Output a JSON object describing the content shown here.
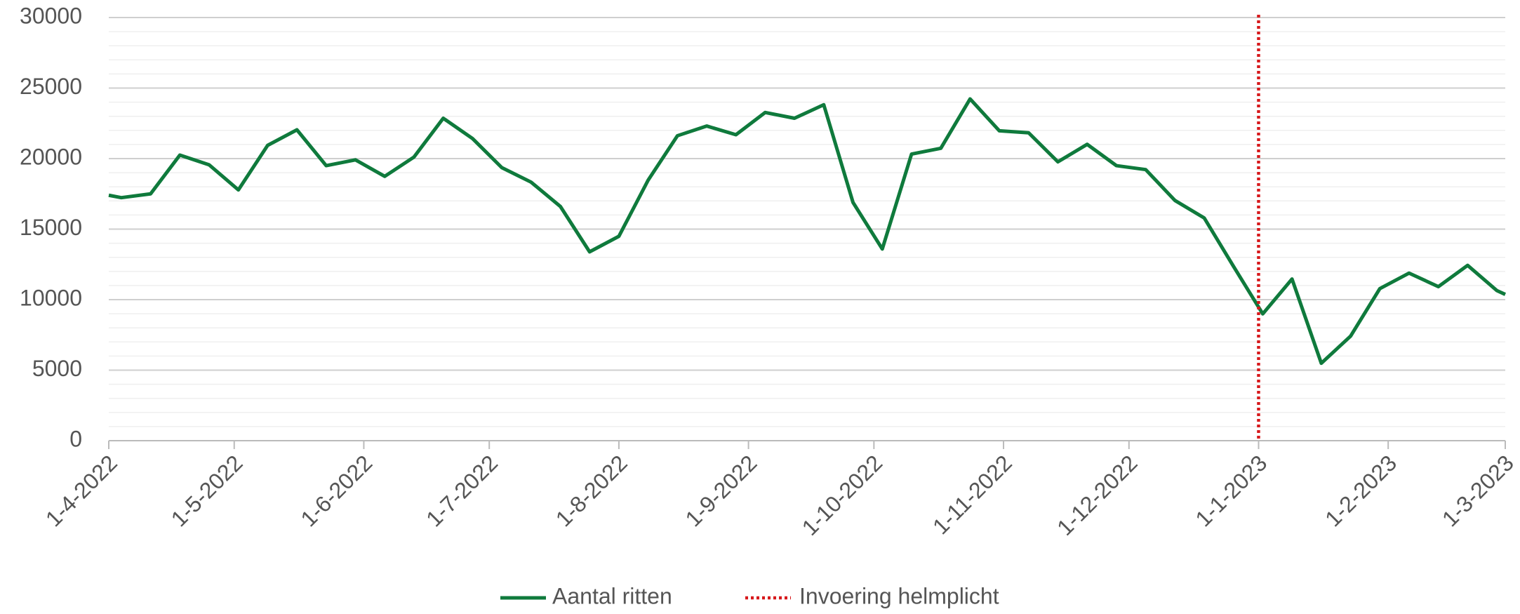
{
  "chart_data": {
    "type": "line",
    "x": [
      "2022-04-01",
      "2022-04-04",
      "2022-04-11",
      "2022-04-18",
      "2022-04-25",
      "2022-05-02",
      "2022-05-09",
      "2022-05-16",
      "2022-05-23",
      "2022-05-30",
      "2022-06-06",
      "2022-06-13",
      "2022-06-20",
      "2022-06-27",
      "2022-07-04",
      "2022-07-11",
      "2022-07-18",
      "2022-07-25",
      "2022-08-01",
      "2022-08-08",
      "2022-08-15",
      "2022-08-22",
      "2022-08-29",
      "2022-09-05",
      "2022-09-12",
      "2022-09-19",
      "2022-09-26",
      "2022-10-03",
      "2022-10-10",
      "2022-10-17",
      "2022-10-24",
      "2022-10-31",
      "2022-11-07",
      "2022-11-14",
      "2022-11-21",
      "2022-11-28",
      "2022-12-05",
      "2022-12-12",
      "2022-12-19",
      "2022-12-26",
      "2023-01-02",
      "2023-01-09",
      "2023-01-16",
      "2023-01-23",
      "2023-01-30",
      "2023-02-06",
      "2023-02-13",
      "2023-02-20",
      "2023-02-27",
      "2023-03-01"
    ],
    "series": [
      {
        "name": "Aantal ritten",
        "color": "#0f7a3c",
        "values": [
          17400,
          17230,
          17500,
          20250,
          19560,
          17780,
          20940,
          22040,
          19500,
          19910,
          18740,
          20110,
          22860,
          21420,
          19360,
          18330,
          16610,
          13390,
          14490,
          18470,
          21620,
          22310,
          21690,
          23270,
          22860,
          23820,
          16890,
          13590,
          20320,
          20730,
          24230,
          21970,
          21830,
          19770,
          21010,
          19500,
          19220,
          17030,
          15790,
          12360,
          8990,
          11460,
          5490,
          7410,
          10780,
          11880,
          10920,
          12430,
          10640,
          10370
        ]
      }
    ],
    "vline": {
      "name": "Invoering helmplicht",
      "color": "#d7191c",
      "x": "2023-01-01"
    },
    "xlim": [
      "2022-04-01",
      "2023-03-01"
    ],
    "xticks": [
      {
        "value": "2022-04-01",
        "label": "1-4-2022"
      },
      {
        "value": "2022-05-01",
        "label": "1-5-2022"
      },
      {
        "value": "2022-06-01",
        "label": "1-6-2022"
      },
      {
        "value": "2022-07-01",
        "label": "1-7-2022"
      },
      {
        "value": "2022-08-01",
        "label": "1-8-2022"
      },
      {
        "value": "2022-09-01",
        "label": "1-9-2022"
      },
      {
        "value": "2022-10-01",
        "label": "1-10-2022"
      },
      {
        "value": "2022-11-01",
        "label": "1-11-2022"
      },
      {
        "value": "2022-12-01",
        "label": "1-12-2022"
      },
      {
        "value": "2023-01-01",
        "label": "1-1-2023"
      },
      {
        "value": "2023-02-01",
        "label": "1-2-2023"
      },
      {
        "value": "2023-03-01",
        "label": "1-3-2023"
      }
    ],
    "ylim": [
      0,
      30000
    ],
    "yticks": [
      0,
      5000,
      10000,
      15000,
      20000,
      25000,
      30000
    ],
    "grid": true,
    "minor_grid": 1000,
    "legend": "bottom"
  }
}
